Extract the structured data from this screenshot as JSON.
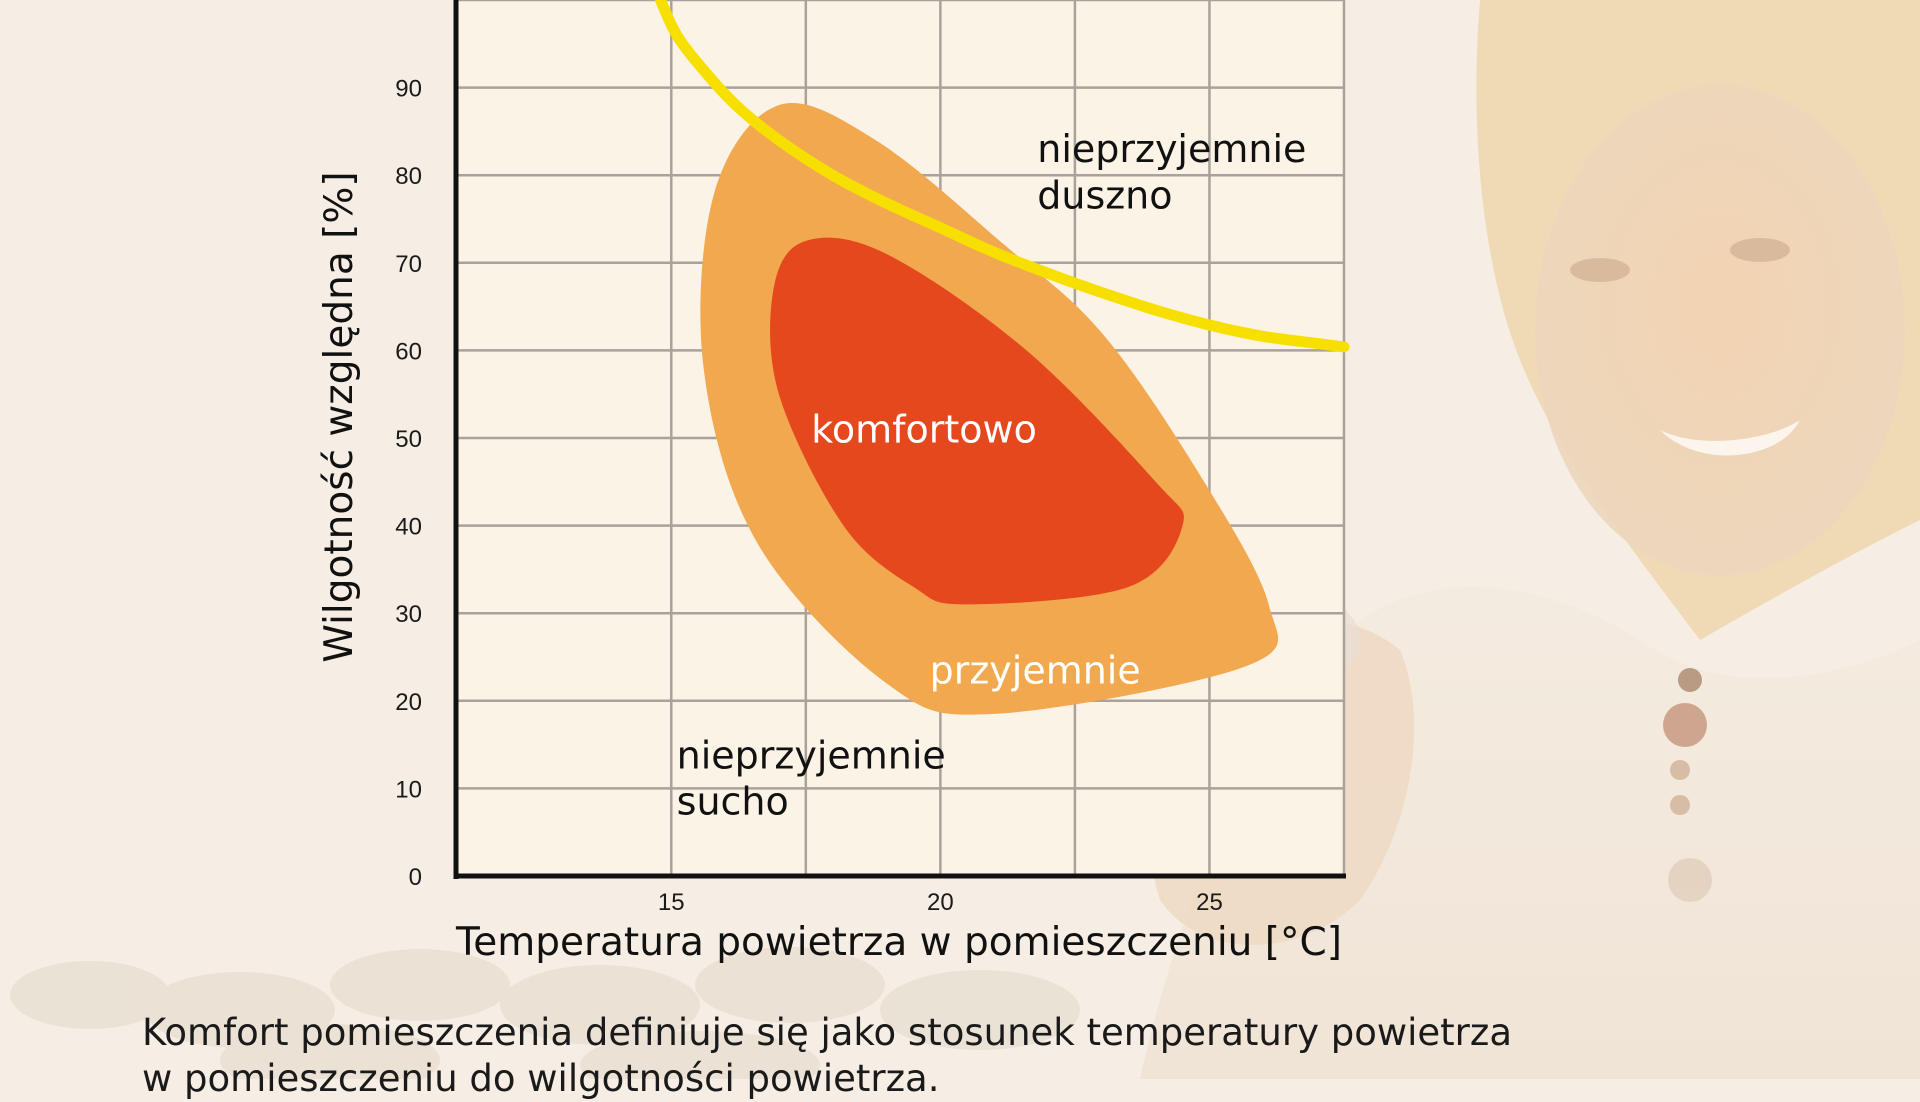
{
  "chart_data": {
    "type": "area",
    "title": "",
    "xlabel": "Temperatura powietrza w pomieszczeniu [°C]",
    "ylabel": "Wilgotność względna [%]",
    "xlim": [
      11,
      27.5
    ],
    "ylim": [
      0,
      100
    ],
    "x_ticks": [
      "15",
      "20",
      "25"
    ],
    "x_tick_values": [
      15,
      20,
      25
    ],
    "y_ticks": [
      "0",
      "10",
      "20",
      "30",
      "40",
      "50",
      "60",
      "70",
      "80",
      "90"
    ],
    "y_tick_values": [
      0,
      10,
      20,
      30,
      40,
      50,
      60,
      70,
      80,
      90
    ],
    "grid": true,
    "series": [
      {
        "name": "",
        "kind": "curve",
        "color": "#f7e000",
        "points": [
          [
            14.8,
            100
          ],
          [
            15.1,
            96
          ],
          [
            15.6,
            92
          ],
          [
            16.2,
            88
          ],
          [
            17,
            84
          ],
          [
            18,
            80
          ],
          [
            19,
            76.8
          ],
          [
            20,
            74
          ],
          [
            21,
            71.2
          ],
          [
            22,
            68.8
          ],
          [
            23,
            66.6
          ],
          [
            24,
            64.6
          ],
          [
            25,
            62.9
          ],
          [
            26,
            61.6
          ],
          [
            27,
            60.8
          ],
          [
            27.5,
            60.4
          ]
        ]
      },
      {
        "name": "",
        "kind": "region",
        "color": "#f1a84e",
        "points": [
          [
            17,
            88
          ],
          [
            18.8,
            84
          ],
          [
            21.2,
            72
          ],
          [
            23,
            62
          ],
          [
            24.8,
            46
          ],
          [
            26.1,
            31
          ],
          [
            25.7,
            24
          ],
          [
            21,
            18.5
          ],
          [
            19,
            22
          ],
          [
            16.6,
            38
          ],
          [
            15.6,
            58
          ],
          [
            15.8,
            78
          ]
        ]
      },
      {
        "name": "",
        "kind": "region",
        "color": "#e5481c",
        "points": [
          [
            17.5,
            72.5
          ],
          [
            19,
            71
          ],
          [
            21.6,
            60
          ],
          [
            24,
            45
          ],
          [
            24.5,
            40
          ],
          [
            23.5,
            33
          ],
          [
            20.5,
            31
          ],
          [
            19.5,
            33
          ],
          [
            18.2,
            40
          ],
          [
            17,
            55
          ],
          [
            16.9,
            67
          ]
        ]
      }
    ],
    "annotations": [
      {
        "text": "nieprzyjemnie",
        "x": 21.8,
        "y": 81.5,
        "color": "#111111"
      },
      {
        "text": "duszno",
        "x": 21.8,
        "y": 76.2,
        "color": "#111111"
      },
      {
        "text": "komfortowo",
        "x": 17.6,
        "y": 49.5,
        "color": "#ffffff"
      },
      {
        "text": "przyjemnie",
        "x": 19.8,
        "y": 22,
        "color": "#ffffff"
      },
      {
        "text": "nieprzyjemnie",
        "x": 15.1,
        "y": 12.3,
        "color": "#111111"
      },
      {
        "text": "sucho",
        "x": 15.1,
        "y": 7.0,
        "color": "#111111"
      }
    ]
  },
  "caption": {
    "line1": "Komfort pomieszczenia definiuje się jako stosunek temperatury powietrza",
    "line2": "w pomieszczeniu do wilgotności powietrza."
  },
  "background": {
    "icon": "smiling-woman-with-mug-photo"
  }
}
